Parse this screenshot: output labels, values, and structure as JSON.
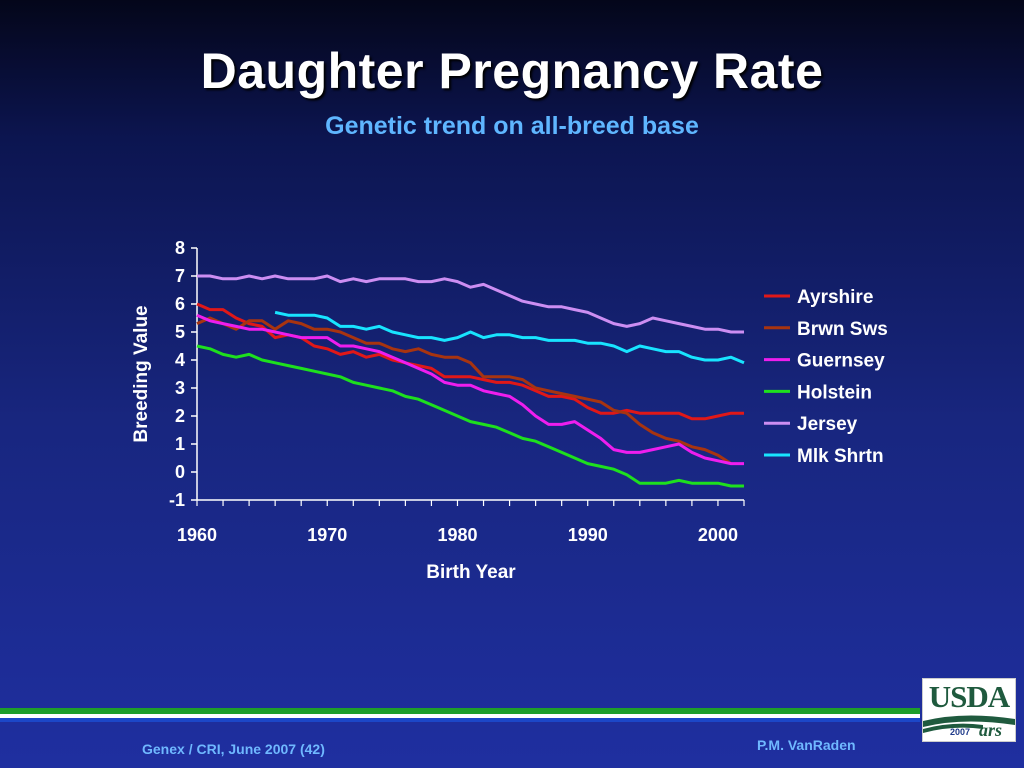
{
  "slide": {
    "title": "Daughter Pregnancy Rate",
    "subtitle": "Genetic trend on all-breed base",
    "footer_left": "Genex / CRI, June 2007 (42)",
    "footer_right": "P.M. VanRaden",
    "logo_text": "USDA",
    "logo_year": "2007",
    "logo_ars": "ars",
    "colors": {
      "green_bar": "#1e9e2a",
      "blue_bar": "#1c47c8",
      "subtitle": "#5fb6ff"
    }
  },
  "chart_data": {
    "type": "line",
    "title": "",
    "xlabel": "Birth Year",
    "ylabel": "Breeding Value",
    "xlim": [
      1960,
      2002
    ],
    "ylim": [
      -1,
      8
    ],
    "xticks": [
      "1960",
      "1970",
      "1980",
      "1990",
      "2000"
    ],
    "yticks": [
      "-1",
      "0",
      "1",
      "2",
      "3",
      "4",
      "5",
      "6",
      "7",
      "8"
    ],
    "grid": false,
    "legend": "right",
    "series": [
      {
        "name": "Ayrshire",
        "color": "#e01818",
        "x": [
          1960,
          1961,
          1962,
          1963,
          1964,
          1965,
          1966,
          1967,
          1968,
          1969,
          1970,
          1971,
          1972,
          1973,
          1974,
          1975,
          1976,
          1977,
          1978,
          1979,
          1980,
          1981,
          1982,
          1983,
          1984,
          1985,
          1986,
          1987,
          1988,
          1989,
          1990,
          1991,
          1992,
          1993,
          1994,
          1995,
          1996,
          1997,
          1998,
          1999,
          2000,
          2001,
          2002
        ],
        "y": [
          6.0,
          5.8,
          5.8,
          5.5,
          5.3,
          5.2,
          4.8,
          4.9,
          4.8,
          4.5,
          4.4,
          4.2,
          4.3,
          4.1,
          4.2,
          4.0,
          3.9,
          3.8,
          3.7,
          3.4,
          3.4,
          3.4,
          3.3,
          3.2,
          3.2,
          3.1,
          2.9,
          2.7,
          2.7,
          2.6,
          2.3,
          2.1,
          2.1,
          2.2,
          2.1,
          2.1,
          2.1,
          2.1,
          1.9,
          1.9,
          2.0,
          2.1,
          2.1
        ]
      },
      {
        "name": "Brwn Sws",
        "color": "#a83410",
        "x": [
          1960,
          1961,
          1962,
          1963,
          1964,
          1965,
          1966,
          1967,
          1968,
          1969,
          1970,
          1971,
          1972,
          1973,
          1974,
          1975,
          1976,
          1977,
          1978,
          1979,
          1980,
          1981,
          1982,
          1983,
          1984,
          1985,
          1986,
          1987,
          1988,
          1989,
          1990,
          1991,
          1992,
          1993,
          1994,
          1995,
          1996,
          1997,
          1998,
          1999,
          2000,
          2001
        ],
        "y": [
          5.3,
          5.5,
          5.3,
          5.1,
          5.4,
          5.4,
          5.1,
          5.4,
          5.3,
          5.1,
          5.1,
          5.0,
          4.8,
          4.6,
          4.6,
          4.4,
          4.3,
          4.4,
          4.2,
          4.1,
          4.1,
          3.9,
          3.4,
          3.4,
          3.4,
          3.3,
          3.0,
          2.9,
          2.8,
          2.7,
          2.6,
          2.5,
          2.2,
          2.1,
          1.7,
          1.4,
          1.2,
          1.1,
          0.9,
          0.8,
          0.6,
          0.3
        ]
      },
      {
        "name": "Guernsey",
        "color": "#ee1eee",
        "x": [
          1960,
          1961,
          1962,
          1963,
          1964,
          1965,
          1966,
          1967,
          1968,
          1969,
          1970,
          1971,
          1972,
          1973,
          1974,
          1975,
          1976,
          1977,
          1978,
          1979,
          1980,
          1981,
          1982,
          1983,
          1984,
          1985,
          1986,
          1987,
          1988,
          1989,
          1990,
          1991,
          1992,
          1993,
          1994,
          1995,
          1996,
          1997,
          1998,
          1999,
          2000,
          2001,
          2002
        ],
        "y": [
          5.6,
          5.4,
          5.3,
          5.2,
          5.1,
          5.1,
          5.0,
          4.9,
          4.8,
          4.8,
          4.8,
          4.5,
          4.5,
          4.4,
          4.3,
          4.1,
          3.9,
          3.7,
          3.5,
          3.2,
          3.1,
          3.1,
          2.9,
          2.8,
          2.7,
          2.4,
          2.0,
          1.7,
          1.7,
          1.8,
          1.5,
          1.2,
          0.8,
          0.7,
          0.7,
          0.8,
          0.9,
          1.0,
          0.7,
          0.5,
          0.4,
          0.3,
          0.3
        ]
      },
      {
        "name": "Holstein",
        "color": "#1ee01e",
        "x": [
          1960,
          1961,
          1962,
          1963,
          1964,
          1965,
          1966,
          1967,
          1968,
          1969,
          1970,
          1971,
          1972,
          1973,
          1974,
          1975,
          1976,
          1977,
          1978,
          1979,
          1980,
          1981,
          1982,
          1983,
          1984,
          1985,
          1986,
          1987,
          1988,
          1989,
          1990,
          1991,
          1992,
          1993,
          1994,
          1995,
          1996,
          1997,
          1998,
          1999,
          2000,
          2001,
          2002
        ],
        "y": [
          4.5,
          4.4,
          4.2,
          4.1,
          4.2,
          4.0,
          3.9,
          3.8,
          3.7,
          3.6,
          3.5,
          3.4,
          3.2,
          3.1,
          3.0,
          2.9,
          2.7,
          2.6,
          2.4,
          2.2,
          2.0,
          1.8,
          1.7,
          1.6,
          1.4,
          1.2,
          1.1,
          0.9,
          0.7,
          0.5,
          0.3,
          0.2,
          0.1,
          -0.1,
          -0.4,
          -0.4,
          -0.4,
          -0.3,
          -0.4,
          -0.4,
          -0.4,
          -0.5,
          -0.5
        ]
      },
      {
        "name": "Jersey",
        "color": "#cc8ef2",
        "x": [
          1960,
          1961,
          1962,
          1963,
          1964,
          1965,
          1966,
          1967,
          1968,
          1969,
          1970,
          1971,
          1972,
          1973,
          1974,
          1975,
          1976,
          1977,
          1978,
          1979,
          1980,
          1981,
          1982,
          1983,
          1984,
          1985,
          1986,
          1987,
          1988,
          1989,
          1990,
          1991,
          1992,
          1993,
          1994,
          1995,
          1996,
          1997,
          1998,
          1999,
          2000,
          2001,
          2002
        ],
        "y": [
          7.0,
          7.0,
          6.9,
          6.9,
          7.0,
          6.9,
          7.0,
          6.9,
          6.9,
          6.9,
          7.0,
          6.8,
          6.9,
          6.8,
          6.9,
          6.9,
          6.9,
          6.8,
          6.8,
          6.9,
          6.8,
          6.6,
          6.7,
          6.5,
          6.3,
          6.1,
          6.0,
          5.9,
          5.9,
          5.8,
          5.7,
          5.5,
          5.3,
          5.2,
          5.3,
          5.5,
          5.4,
          5.3,
          5.2,
          5.1,
          5.1,
          5.0,
          5.0
        ]
      },
      {
        "name": "Mlk Shrtn",
        "color": "#18e4ff",
        "x": [
          1966,
          1967,
          1968,
          1969,
          1970,
          1971,
          1972,
          1973,
          1974,
          1975,
          1976,
          1977,
          1978,
          1979,
          1980,
          1981,
          1982,
          1983,
          1984,
          1985,
          1986,
          1987,
          1988,
          1989,
          1990,
          1991,
          1992,
          1993,
          1994,
          1995,
          1996,
          1997,
          1998,
          1999,
          2000,
          2001,
          2002
        ],
        "y": [
          5.7,
          5.6,
          5.6,
          5.6,
          5.5,
          5.2,
          5.2,
          5.1,
          5.2,
          5.0,
          4.9,
          4.8,
          4.8,
          4.7,
          4.8,
          5.0,
          4.8,
          4.9,
          4.9,
          4.8,
          4.8,
          4.7,
          4.7,
          4.7,
          4.6,
          4.6,
          4.5,
          4.3,
          4.5,
          4.4,
          4.3,
          4.3,
          4.1,
          4.0,
          4.0,
          4.1,
          3.9
        ]
      }
    ]
  }
}
